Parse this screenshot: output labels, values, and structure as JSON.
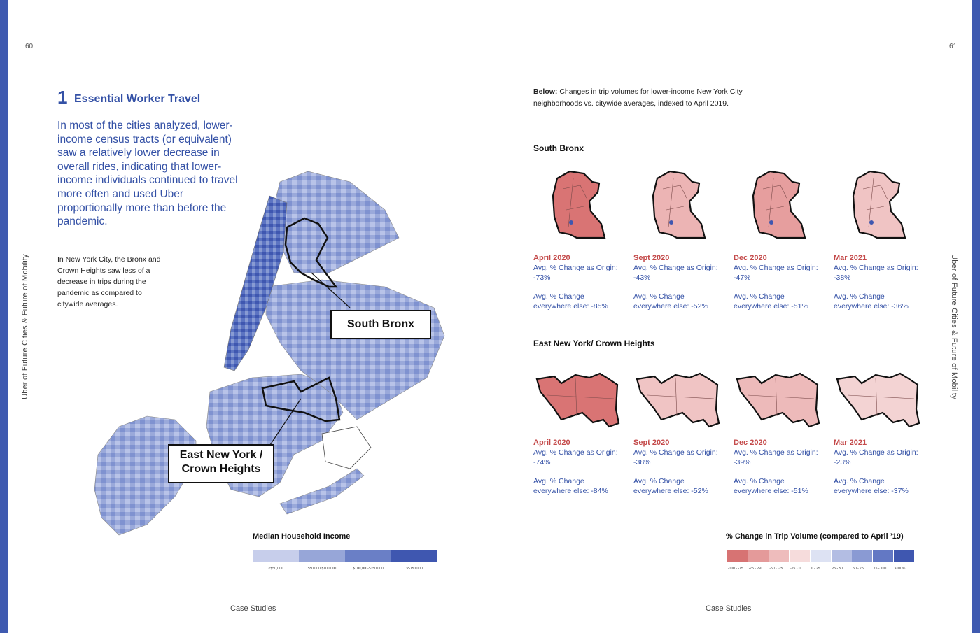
{
  "page_left": {
    "page_number": "60",
    "side_label": "Uber of Future Cities & Future of Mobility",
    "footer": "Case Studies",
    "section": {
      "number": "1",
      "title": "Essential Worker Travel"
    },
    "lead": "In most of the cities analyzed, lower-income census tracts (or equivalent) saw a relatively lower decrease in overall rides, indicating that lower-income individuals continued to travel more often and used Uber proportionally more than before the pandemic.",
    "body": "In New York City, the Bronx and Crown Heights saw less of a decrease in trips during the pandemic as compared to citywide averages.",
    "map": {
      "callout_bronx": "South Bronx",
      "callout_eny_line1": "East New York /",
      "callout_eny_line2": "Crown Heights"
    },
    "legend": {
      "title": "Median Household Income",
      "items": [
        {
          "label": "<$50,000",
          "color": "#c7ceeb"
        },
        {
          "label": "$50,000-$100,000",
          "color": "#97a6d8"
        },
        {
          "label": "$100,000-$150,000",
          "color": "#6a7fc6"
        },
        {
          "label": ">$150,000",
          "color": "#3f57b0"
        }
      ]
    }
  },
  "page_right": {
    "page_number": "61",
    "side_label": "Uber of Future Cities & Future of Mobility",
    "footer": "Case Studies",
    "intro_bold": "Below:",
    "intro_text": " Changes in trip volumes for lower-income New York City neighborhoods vs. citywide averages, indexed to April 2019.",
    "south_bronx": {
      "title": "South Bronx",
      "panels": [
        {
          "date": "April 2020",
          "origin_label": "Avg. % Change as Origin:",
          "origin_value": "-73%",
          "else_label": "Avg. % Change",
          "else_value": "everywhere else: -85%",
          "fill": "#d97474"
        },
        {
          "date": "Sept 2020",
          "origin_label": "Avg. % Change as Origin:",
          "origin_value": "-43%",
          "else_label": "Avg. % Change",
          "else_value": "everywhere else: -52%",
          "fill": "#ecb4b4"
        },
        {
          "date": "Dec 2020",
          "origin_label": "Avg. % Change as Origin:",
          "origin_value": "-47%",
          "else_label": "Avg. % Change",
          "else_value": "everywhere else: -51%",
          "fill": "#e69e9e"
        },
        {
          "date": "Mar 2021",
          "origin_label": "Avg. % Change as Origin:",
          "origin_value": "-38%",
          "else_label": "Avg. % Change",
          "else_value": "everywhere else: -36%",
          "fill": "#f0c4c4"
        }
      ]
    },
    "east_ny": {
      "title": "East New York/ Crown Heights",
      "panels": [
        {
          "date": "April 2020",
          "origin_label": "Avg. % Change as Origin:",
          "origin_value": "-74%",
          "else_label": "Avg. % Change",
          "else_value": "everywhere else: -84%",
          "fill": "#d97474"
        },
        {
          "date": "Sept 2020",
          "origin_label": "Avg. % Change as Origin:",
          "origin_value": "-38%",
          "else_label": "Avg. % Change",
          "else_value": "everywhere else: -52%",
          "fill": "#f0c4c4"
        },
        {
          "date": "Dec 2020",
          "origin_label": "Avg. % Change as Origin:",
          "origin_value": "-39%",
          "else_label": "Avg. % Change",
          "else_value": "everywhere else: -51%",
          "fill": "#edbaba"
        },
        {
          "date": "Mar 2021",
          "origin_label": "Avg. % Change as Origin:",
          "origin_value": "-23%",
          "else_label": "Avg. % Change",
          "else_value": "everywhere else: -37%",
          "fill": "#f3d3d3"
        }
      ]
    },
    "legend": {
      "title": "% Change in Trip Volume (compared to April ’19)",
      "items": [
        {
          "label": "-100 - -75",
          "color": "#d77373"
        },
        {
          "label": "-75 - -50",
          "color": "#e49a9a"
        },
        {
          "label": "-50 - -25",
          "color": "#eebcbc"
        },
        {
          "label": "-25 - 0",
          "color": "#f6dcdc"
        },
        {
          "label": "0 - 25",
          "color": "#dde2f3"
        },
        {
          "label": "25 - 50",
          "color": "#b3bde3"
        },
        {
          "label": "50 - 75",
          "color": "#8a9ad3"
        },
        {
          "label": "75 - 100",
          "color": "#6378c4"
        },
        {
          "label": ">100%",
          "color": "#3f57b0"
        }
      ]
    }
  }
}
